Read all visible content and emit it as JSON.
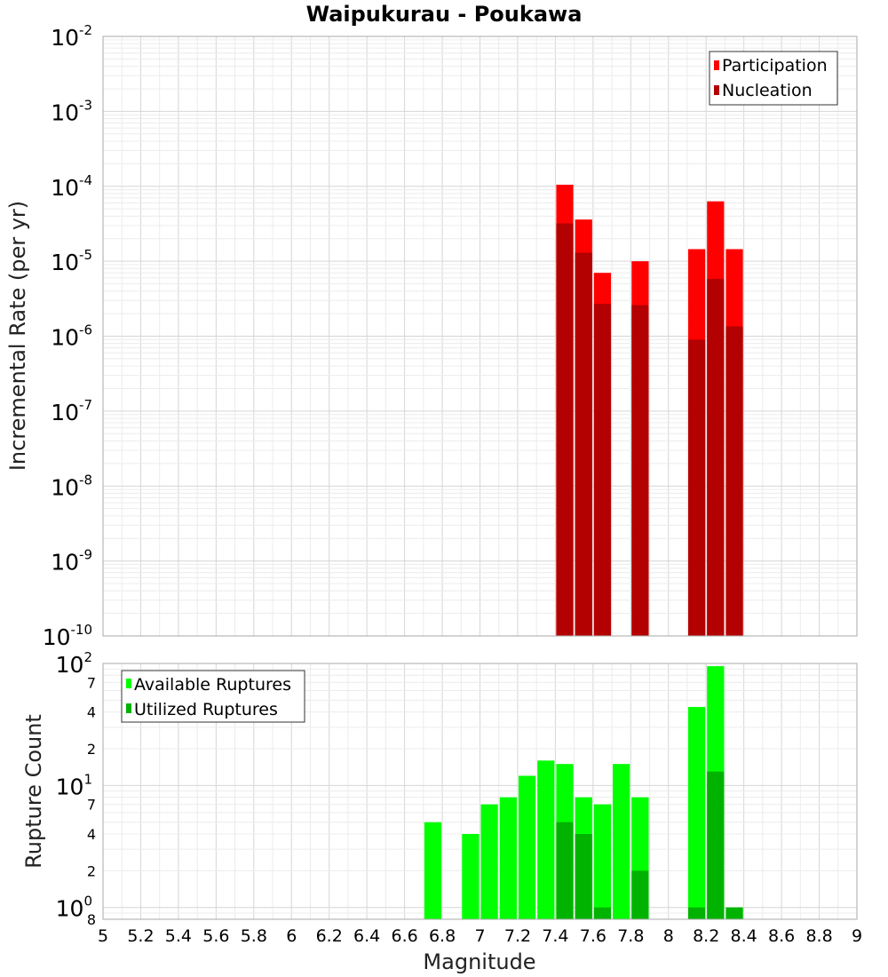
{
  "title": "Waipukurau - Poukawa",
  "xlabel": "Magnitude",
  "x_ticks": [
    "5",
    "5.2",
    "5.4",
    "5.6",
    "5.8",
    "6",
    "6.2",
    "6.4",
    "6.6",
    "6.8",
    "7",
    "7.2",
    "7.4",
    "7.6",
    "7.8",
    "8",
    "8.2",
    "8.4",
    "8.6",
    "8.8",
    "9"
  ],
  "colors": {
    "participation": "#ff0000",
    "nucleation": "#b30000",
    "available": "#00ff00",
    "utilized": "#00b300",
    "grid": "#d6d6d6",
    "frame": "#aaaaaa"
  },
  "chart_data": [
    {
      "type": "bar",
      "name": "rate-panel",
      "title": "Waipukurau - Poukawa",
      "ylabel": "Incremental Rate (per yr)",
      "xlim": [
        5,
        9
      ],
      "ylim": [
        1e-10,
        0.01
      ],
      "yscale": "log",
      "bar_width": 0.1,
      "grid": true,
      "y_tick_labels": [
        {
          "base": "10",
          "exp": "-2"
        },
        {
          "base": "10",
          "exp": "-3"
        },
        {
          "base": "10",
          "exp": "-4"
        },
        {
          "base": "10",
          "exp": "-5"
        },
        {
          "base": "10",
          "exp": "-6"
        },
        {
          "base": "10",
          "exp": "-7"
        },
        {
          "base": "10",
          "exp": "-8"
        },
        {
          "base": "10",
          "exp": "-9"
        },
        {
          "base": "10",
          "exp": "-10"
        }
      ],
      "legend": {
        "position": "top-right",
        "entries": [
          "Participation",
          "Nucleation"
        ]
      },
      "x": [
        7.45,
        7.55,
        7.65,
        7.85,
        8.15,
        8.25,
        8.35
      ],
      "series": [
        {
          "name": "Participation",
          "values": [
            0.000105,
            3.6e-05,
            7e-06,
            1e-05,
            1.45e-05,
            6.3e-05,
            1.45e-05
          ]
        },
        {
          "name": "Nucleation",
          "values": [
            3.2e-05,
            1.3e-05,
            2.7e-06,
            2.6e-06,
            9e-07,
            5.8e-06,
            1.35e-06
          ]
        }
      ]
    },
    {
      "type": "bar",
      "name": "count-panel",
      "ylabel": "Rupture Count",
      "xlabel": "Magnitude",
      "xlim": [
        5,
        9
      ],
      "ylim": [
        0.8,
        100
      ],
      "yscale": "log",
      "bar_width": 0.1,
      "grid": true,
      "y_tick_labels": [
        {
          "base": "10",
          "exp": "2"
        },
        {
          "base": "7",
          "exp": ""
        },
        {
          "base": "4",
          "exp": ""
        },
        {
          "base": "2",
          "exp": ""
        },
        {
          "base": "10",
          "exp": "1"
        },
        {
          "base": "7",
          "exp": ""
        },
        {
          "base": "4",
          "exp": ""
        },
        {
          "base": "2",
          "exp": ""
        },
        {
          "base": "10",
          "exp": "0"
        },
        {
          "base": "8",
          "exp": ""
        }
      ],
      "legend": {
        "position": "top-left",
        "entries": [
          "Available Ruptures",
          "Utilized Ruptures"
        ]
      },
      "x": [
        6.75,
        6.95,
        7.05,
        7.15,
        7.25,
        7.35,
        7.45,
        7.55,
        7.65,
        7.75,
        7.85,
        8.15,
        8.25,
        8.35
      ],
      "series": [
        {
          "name": "Available Ruptures",
          "values": [
            5,
            4,
            7,
            8,
            12,
            16,
            15,
            8,
            7,
            15,
            8,
            44,
            95,
            1
          ]
        },
        {
          "name": "Utilized Ruptures",
          "values": [
            0,
            0,
            0,
            0,
            0,
            0,
            5,
            4,
            1,
            0,
            2,
            1,
            13,
            1
          ]
        }
      ]
    }
  ]
}
